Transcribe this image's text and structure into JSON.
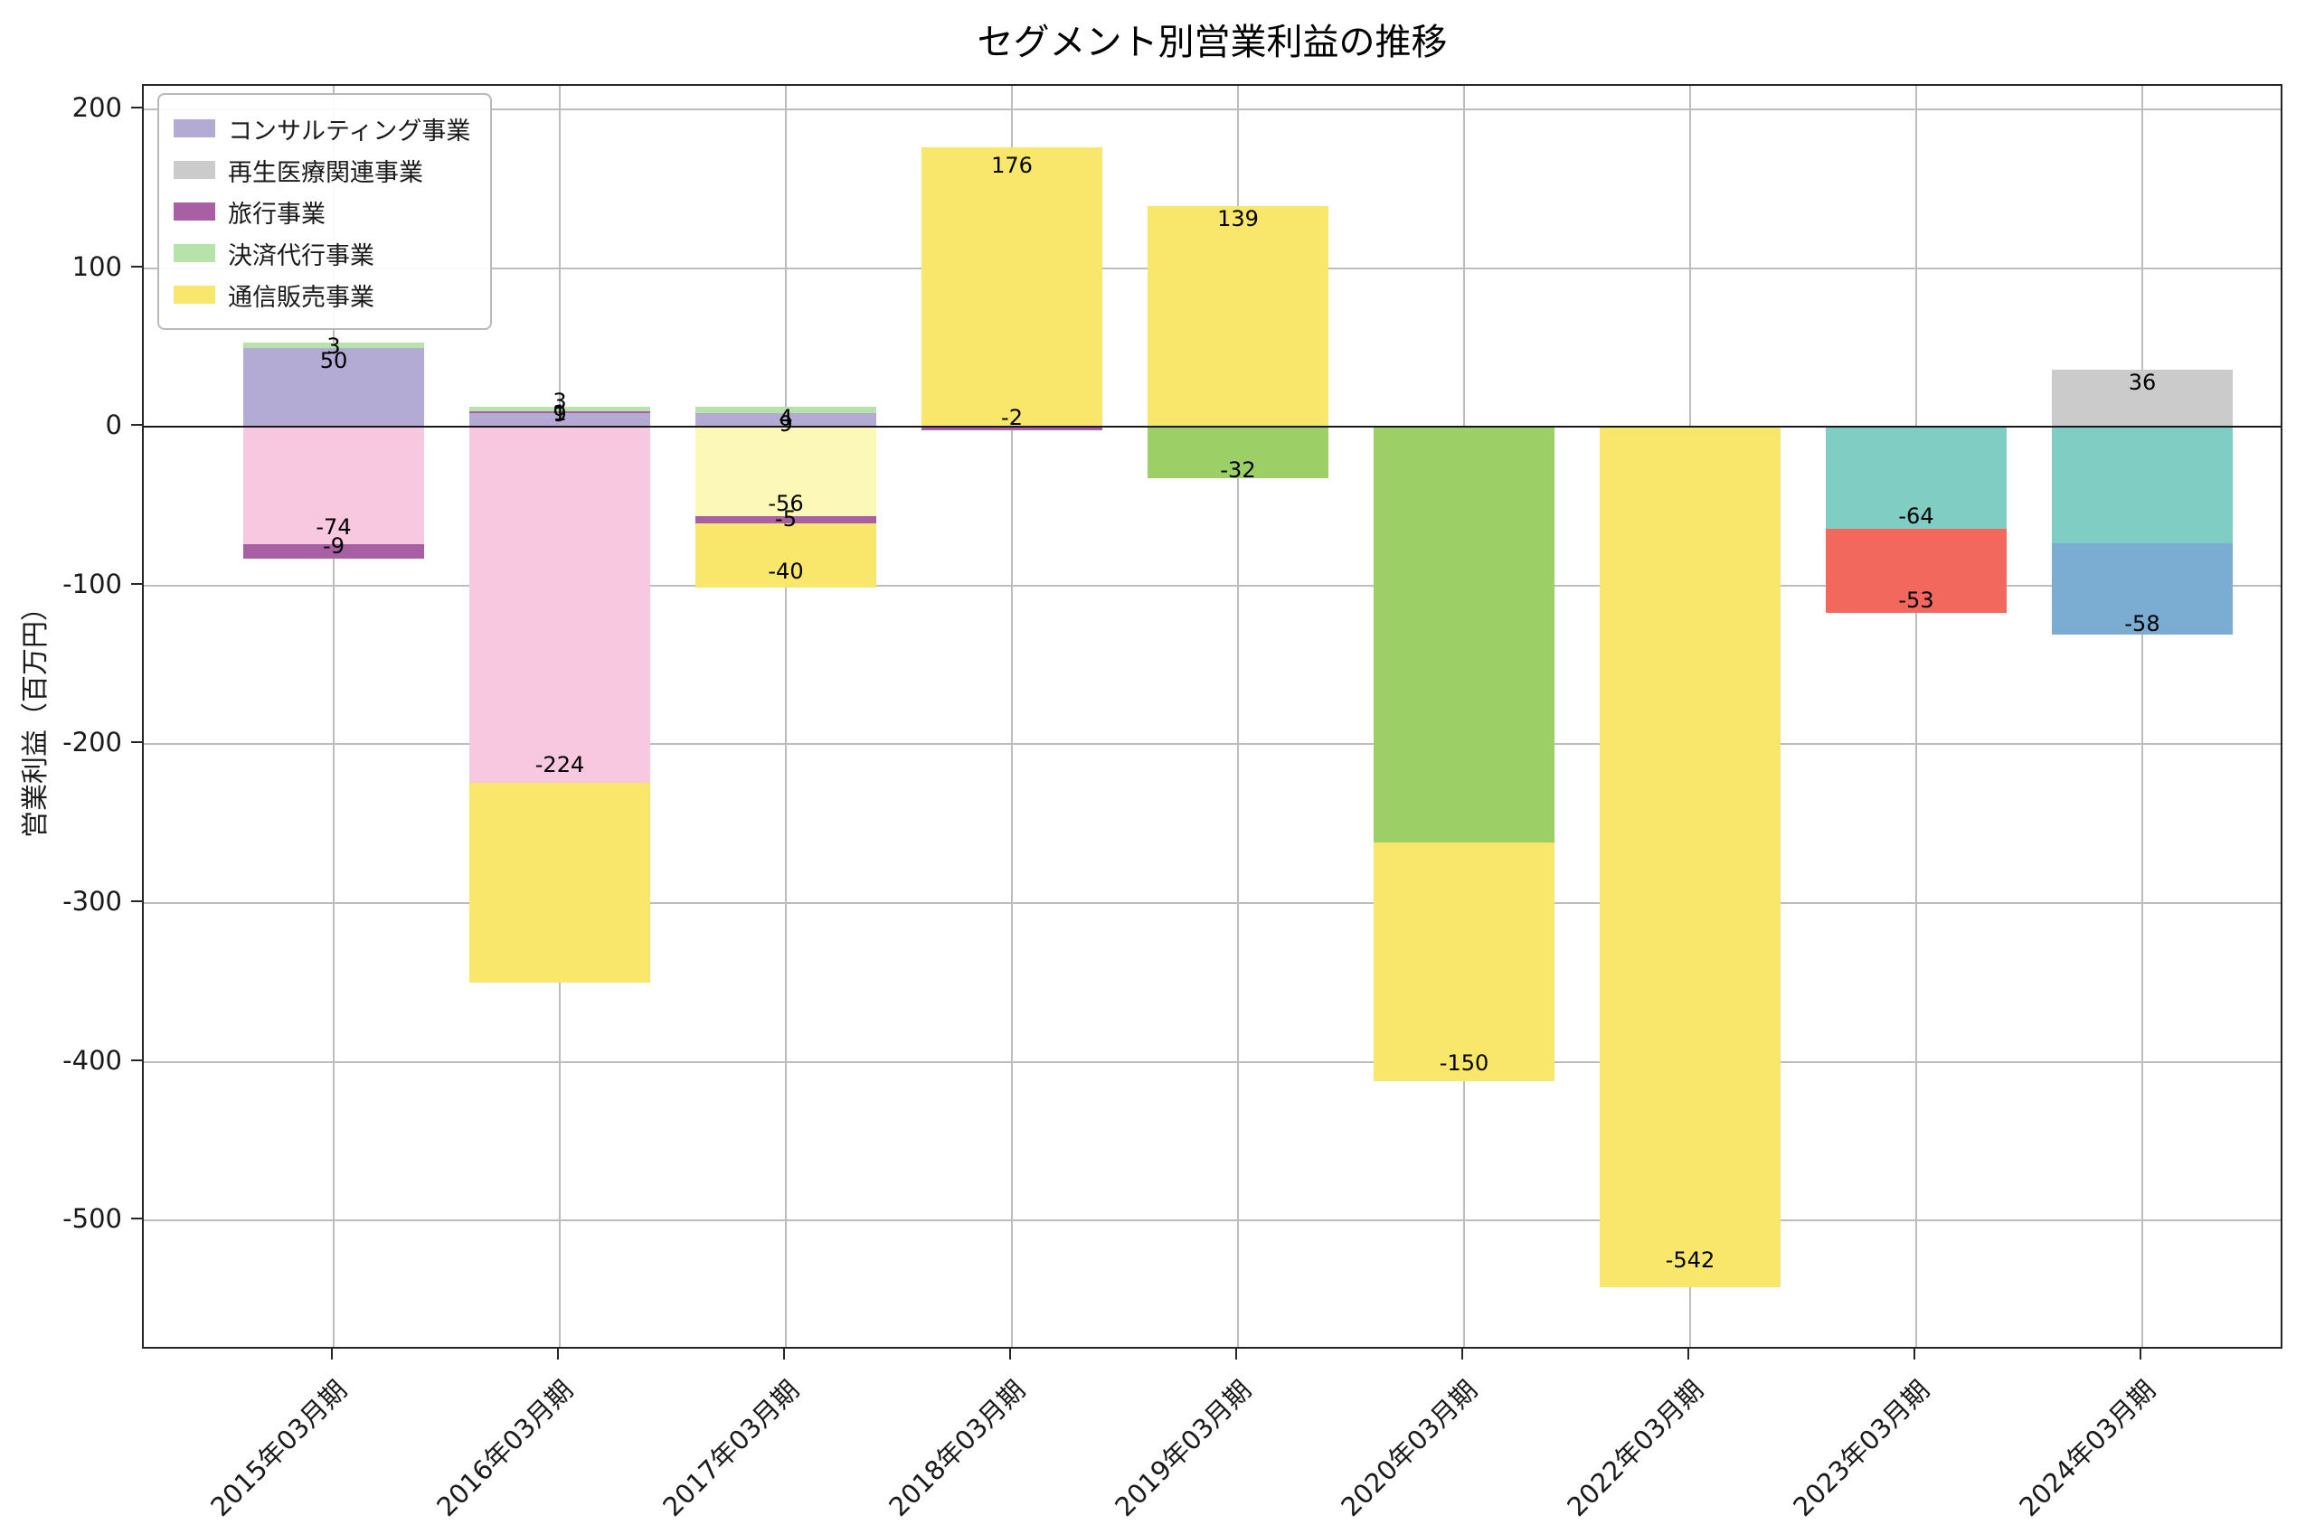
{
  "title": "セグメント別営業利益の推移",
  "y_axis_label": "営業利益（百万円）",
  "legend": [
    {
      "label": "コンサルティング事業",
      "color": "#b3abd4"
    },
    {
      "label": "再生医療関連事業",
      "color": "#cbcbcb"
    },
    {
      "label": "旅行事業",
      "color": "#a95fa3"
    },
    {
      "label": "決済代行事業",
      "color": "#b7e2aa"
    },
    {
      "label": "通信販売事業",
      "color": "#f8e76a"
    }
  ],
  "chart_data": {
    "type": "bar",
    "stacked": true,
    "title": "セグメント別営業利益の推移",
    "xlabel": "",
    "ylabel": "営業利益（百万円）",
    "ylim": [
      -582,
      215
    ],
    "yticks": [
      200,
      100,
      0,
      -100,
      -200,
      -300,
      -400,
      -500
    ],
    "grid": true,
    "legend_position": "upper left",
    "categories": [
      "2015年03月期",
      "2016年03月期",
      "2017年03月期",
      "2018年03月期",
      "2019年03月期",
      "2020年03月期",
      "2022年03月期",
      "2023年03月期",
      "2024年03月期"
    ],
    "bars": [
      {
        "category": "2015年03月期",
        "segments": [
          {
            "series": "コンサルティング事業",
            "color": "#b3abd4",
            "value": 50,
            "label": "50",
            "label_pos": 42
          },
          {
            "series": "決済代行事業",
            "color": "#b7e2aa",
            "value": 3,
            "label": "3",
            "label_pos": 51
          },
          {
            "series": "",
            "color": "#f8c8e0",
            "value": -74,
            "label": "-74",
            "label_pos": -63
          },
          {
            "series": "旅行事業",
            "color": "#a95fa3",
            "value": -9,
            "label": "-9",
            "label_pos": -75
          }
        ]
      },
      {
        "category": "2016年03月期",
        "segments": [
          {
            "series": "コンサルティング事業",
            "color": "#b3abd4",
            "value": 9,
            "label": "9",
            "label_pos": 8
          },
          {
            "series": "旅行事業",
            "color": "#a95fa3",
            "value": 1,
            "label": "1",
            "label_pos": 9
          },
          {
            "series": "決済代行事業",
            "color": "#b7e2aa",
            "value": 3,
            "label": "3",
            "label_pos": 16
          },
          {
            "series": "",
            "color": "#f8c8e0",
            "value": -224,
            "label": "-224",
            "label_pos": -213
          },
          {
            "series": "通信販売事業",
            "color": "#f8e76a",
            "value": -126,
            "label": "",
            "label_pos": null
          }
        ]
      },
      {
        "category": "2017年03月期",
        "segments": [
          {
            "series": "コンサルティング事業",
            "color": "#b3abd4",
            "value": 9,
            "label": "9",
            "label_pos": 2
          },
          {
            "series": "決済代行事業",
            "color": "#b7e2aa",
            "value": 4,
            "label": "4",
            "label_pos": 6
          },
          {
            "series": "",
            "color": "#fcf9b8",
            "value": -56,
            "label": "-56",
            "label_pos": -48
          },
          {
            "series": "旅行事業",
            "color": "#a95fa3",
            "value": -5,
            "label": "-5",
            "label_pos": -58
          },
          {
            "series": "通信販売事業",
            "color": "#f8e76a",
            "value": -40,
            "label": "-40",
            "label_pos": -91
          }
        ]
      },
      {
        "category": "2018年03月期",
        "segments": [
          {
            "series": "通信販売事業",
            "color": "#f8e76a",
            "value": 176,
            "label": "176",
            "label_pos": 165
          },
          {
            "series": "旅行事業",
            "color": "#a95fa3",
            "value": -2,
            "label": "-2",
            "label_pos": 6
          }
        ]
      },
      {
        "category": "2019年03月期",
        "segments": [
          {
            "series": "通信販売事業",
            "color": "#f8e76a",
            "value": 139,
            "label": "139",
            "label_pos": 131
          },
          {
            "series": "",
            "color": "#9ccf66",
            "value": -32,
            "label": "-32",
            "label_pos": -27
          }
        ]
      },
      {
        "category": "2020年03月期",
        "segments": [
          {
            "series": "",
            "color": "#9ccf66",
            "value": -262,
            "label": "",
            "label_pos": null
          },
          {
            "series": "通信販売事業",
            "color": "#f8e76a",
            "value": -150,
            "label": "-150",
            "label_pos": -401
          }
        ]
      },
      {
        "category": "2022年03月期",
        "segments": [
          {
            "series": "通信販売事業",
            "color": "#f8e76a",
            "value": -542,
            "label": "-542",
            "label_pos": -525
          }
        ]
      },
      {
        "category": "2023年03月期",
        "segments": [
          {
            "series": "",
            "color": "#80cdc4",
            "value": -64,
            "label": "-64",
            "label_pos": -56
          },
          {
            "series": "",
            "color": "#f2685c",
            "value": -53,
            "label": "-53",
            "label_pos": -109
          }
        ]
      },
      {
        "category": "2024年03月期",
        "segments": [
          {
            "series": "再生医療関連事業",
            "color": "#cbcbcb",
            "value": 36,
            "label": "36",
            "label_pos": 28
          },
          {
            "series": "",
            "color": "#80cdc4",
            "value": -73,
            "label": "",
            "label_pos": null
          },
          {
            "series": "",
            "color": "#7badd2",
            "value": -58,
            "label": "-58",
            "label_pos": -124
          }
        ]
      }
    ]
  }
}
